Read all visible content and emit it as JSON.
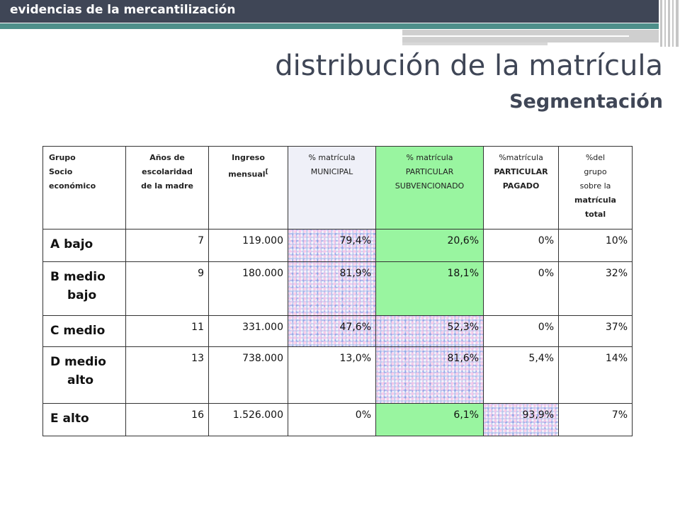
{
  "header": {
    "section_label": "evidencias de la mercantilización"
  },
  "titles": {
    "main": "distribución de la matrícula",
    "sub": "Segmentación"
  },
  "table": {
    "headers": {
      "grupo": [
        "Grupo",
        "Socio",
        "económico"
      ],
      "anios": [
        "Años de",
        "escolaridad",
        "de la madre"
      ],
      "ingreso": [
        "Ingreso",
        "mensual"
      ],
      "ingreso_ref": "[",
      "municipal": [
        "% matrícula",
        "MUNICIPAL"
      ],
      "subvencionado": [
        "% matrícula",
        "PARTICULAR",
        "SUBVENCIONADO"
      ],
      "pagado": [
        "%matrícula",
        "PARTICULAR",
        "PAGADO"
      ],
      "total": [
        "%del",
        "grupo",
        "sobre la",
        "matrícula",
        "total"
      ]
    },
    "rows": [
      {
        "group": [
          "A bajo"
        ],
        "years": "7",
        "income": "119.000",
        "municipal": "79,4%",
        "subvencionado": "20,6%",
        "pagado": "0%",
        "total": "10%"
      },
      {
        "group": [
          "B medio",
          "bajo"
        ],
        "years": "9",
        "income": "180.000",
        "municipal": "81,9%",
        "subvencionado": "18,1%",
        "pagado": "0%",
        "total": "32%"
      },
      {
        "group": [
          "C medio"
        ],
        "years": "11",
        "income": "331.000",
        "municipal": "47,6%",
        "subvencionado": "52,3%",
        "pagado": "0%",
        "total": "37%"
      },
      {
        "group": [
          "D medio",
          "alto"
        ],
        "years": "13",
        "income": "738.000",
        "municipal": "13,0%",
        "subvencionado": "81,6%",
        "pagado": "5,4%",
        "total": "14%"
      },
      {
        "group": [
          "E alto"
        ],
        "years": "16",
        "income": "1.526.000",
        "municipal": "0%",
        "subvencionado": "6,1%",
        "pagado": "93,9%",
        "total": "7%"
      }
    ]
  },
  "colors": {
    "header_band": "#3f4656",
    "accent_teal": "#4e8f8a",
    "highlight_green": "#99f5a0",
    "texture_blue": "#b9c7ee",
    "title_text": "#3f4656"
  }
}
